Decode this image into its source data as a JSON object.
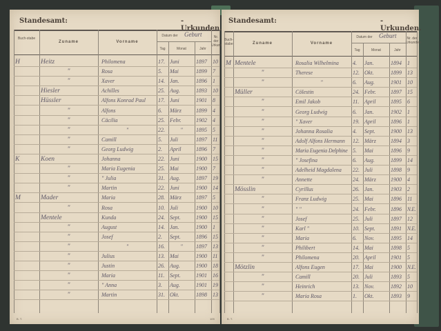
{
  "header": {
    "office_label": "Standesamt:",
    "records_label": "-Urkunden."
  },
  "columns": {
    "letter": "Buch-stabe",
    "surname": "Zuname",
    "given": "Vorname",
    "date_group_printed": "Datum der",
    "date_group_hand": "Geburt",
    "day": "Tag",
    "month": "Monat",
    "year": "Jahr",
    "number": "Nr. der Urkunden"
  },
  "left_page": {
    "rows": [
      {
        "letter": "H",
        "surname": "Heitz",
        "given": "Philomena",
        "day": "17.",
        "month": "Juni",
        "year": "1897",
        "nr": "10"
      },
      {
        "letter": "",
        "surname": "\"",
        "given": "Rosa",
        "day": "5.",
        "month": "Mai",
        "year": "1899",
        "nr": "7"
      },
      {
        "letter": "",
        "surname": "\"",
        "given": "Xaver",
        "day": "14.",
        "month": "Jan.",
        "year": "1896",
        "nr": "1"
      },
      {
        "letter": "",
        "surname": "Hiesler",
        "given": "Achilles",
        "day": "25.",
        "month": "Aug.",
        "year": "1893",
        "nr": "10"
      },
      {
        "letter": "",
        "surname": "Hüssler",
        "given": "Alfons Konrad Paul",
        "day": "17.",
        "month": "Juni",
        "year": "1901",
        "nr": "8"
      },
      {
        "letter": "",
        "surname": "\"",
        "given": "Alfons",
        "day": "6.",
        "month": "März",
        "year": "1899",
        "nr": "4"
      },
      {
        "letter": "",
        "surname": "\"",
        "given": "Cäcilia",
        "day": "25.",
        "month": "Febr.",
        "year": "1902",
        "nr": "4"
      },
      {
        "letter": "",
        "surname": "\"",
        "given": "\"",
        "day": "22.",
        "month": "\"",
        "year": "1895",
        "nr": "5"
      },
      {
        "letter": "",
        "surname": "\"",
        "given": "Camill",
        "day": "5.",
        "month": "Juli",
        "year": "1897",
        "nr": "11"
      },
      {
        "letter": "",
        "surname": "\"",
        "given": "Georg Ludwig",
        "day": "2.",
        "month": "April",
        "year": "1896",
        "nr": "7"
      },
      {
        "letter": "K",
        "surname": "Koen",
        "given": "Johanna",
        "day": "22.",
        "month": "Juni",
        "year": "1900",
        "nr": "15"
      },
      {
        "letter": "",
        "surname": "\"",
        "given": "Maria Eugenia",
        "day": "25.",
        "month": "Mai",
        "year": "1900",
        "nr": "7"
      },
      {
        "letter": "",
        "surname": "\"",
        "given": "\" Julia",
        "day": "31.",
        "month": "Aug.",
        "year": "1897",
        "nr": "19"
      },
      {
        "letter": "",
        "surname": "\"",
        "given": "Martin",
        "day": "22.",
        "month": "Juni",
        "year": "1900",
        "nr": "14"
      },
      {
        "letter": "M",
        "surname": "Mader",
        "given": "Maria",
        "day": "28.",
        "month": "März",
        "year": "1897",
        "nr": "5"
      },
      {
        "letter": "",
        "surname": "\"",
        "given": "Rosa",
        "day": "10.",
        "month": "Juli",
        "year": "1900",
        "nr": "10"
      },
      {
        "letter": "",
        "surname": "Mentele",
        "given": "Kunda",
        "day": "24.",
        "month": "Sept.",
        "year": "1900",
        "nr": "15"
      },
      {
        "letter": "",
        "surname": "\"",
        "given": "August",
        "day": "14.",
        "month": "Jan.",
        "year": "1900",
        "nr": "1"
      },
      {
        "letter": "",
        "surname": "\"",
        "given": "Josef",
        "day": "2.",
        "month": "Sept.",
        "year": "1896",
        "nr": "15"
      },
      {
        "letter": "",
        "surname": "\"",
        "given": "\"",
        "day": "16.",
        "month": "\"",
        "year": "1897",
        "nr": "13"
      },
      {
        "letter": "",
        "surname": "\"",
        "given": "Julius",
        "day": "13.",
        "month": "Mai",
        "year": "1900",
        "nr": "11"
      },
      {
        "letter": "",
        "surname": "\"",
        "given": "Justin",
        "day": "26.",
        "month": "Aug.",
        "year": "1900",
        "nr": "18"
      },
      {
        "letter": "",
        "surname": "\"",
        "given": "Maria",
        "day": "11.",
        "month": "Sept.",
        "year": "1901",
        "nr": "16"
      },
      {
        "letter": "",
        "surname": "\"",
        "given": "\" Anna",
        "day": "3.",
        "month": "Aug.",
        "year": "1901",
        "nr": "19"
      },
      {
        "letter": "",
        "surname": "\"",
        "given": "Martin",
        "day": "31.",
        "month": "Okt.",
        "year": "1898",
        "nr": "13"
      }
    ],
    "footer_left": "B. T.",
    "footer_right": "109"
  },
  "right_page": {
    "rows": [
      {
        "letter": "M",
        "surname": "Mentele",
        "given": "Rosalia Wilhelmina",
        "day": "4.",
        "month": "Jan.",
        "year": "1894",
        "nr": "1"
      },
      {
        "letter": "",
        "surname": "\"",
        "given": "Therese",
        "day": "12.",
        "month": "Okt.",
        "year": "1899",
        "nr": "13"
      },
      {
        "letter": "",
        "surname": "\"",
        "given": "\"",
        "day": "6.",
        "month": "Aug.",
        "year": "1901",
        "nr": "10"
      },
      {
        "letter": "",
        "surname": "Müller",
        "given": "Cölestin",
        "day": "24.",
        "month": "Febr.",
        "year": "1897",
        "nr": "15"
      },
      {
        "letter": "",
        "surname": "\"",
        "given": "Emil Jakob",
        "day": "11.",
        "month": "April",
        "year": "1895",
        "nr": "6"
      },
      {
        "letter": "",
        "surname": "\"",
        "given": "Georg Ludwig",
        "day": "6.",
        "month": "Jan.",
        "year": "1902",
        "nr": "1"
      },
      {
        "letter": "",
        "surname": "\"",
        "given": "\" Xaver",
        "day": "19.",
        "month": "April",
        "year": "1896",
        "nr": "1"
      },
      {
        "letter": "",
        "surname": "\"",
        "given": "Johanna Rosalia",
        "day": "4.",
        "month": "Sept.",
        "year": "1900",
        "nr": "13"
      },
      {
        "letter": "",
        "surname": "\"",
        "given": "Adolf Alfons Hermann",
        "day": "12.",
        "month": "März",
        "year": "1894",
        "nr": "3"
      },
      {
        "letter": "",
        "surname": "\"",
        "given": "Maria Eugenia Delphine",
        "day": "5.",
        "month": "Mai",
        "year": "1896",
        "nr": "9"
      },
      {
        "letter": "",
        "surname": "\"",
        "given": "\" Josefina",
        "day": "6.",
        "month": "Aug.",
        "year": "1899",
        "nr": "14"
      },
      {
        "letter": "",
        "surname": "\"",
        "given": "Adelheid Magdalena",
        "day": "22.",
        "month": "Juli",
        "year": "1898",
        "nr": "9"
      },
      {
        "letter": "",
        "surname": "\"",
        "given": "Annette",
        "day": "24.",
        "month": "März",
        "year": "1900",
        "nr": "4"
      },
      {
        "letter": "",
        "surname": "Mösslin",
        "given": "Cyrillus",
        "day": "26.",
        "month": "Jan.",
        "year": "1903",
        "nr": "2"
      },
      {
        "letter": "",
        "surname": "\"",
        "given": "Franz Ludwig",
        "day": "25.",
        "month": "Mai",
        "year": "1896",
        "nr": "11"
      },
      {
        "letter": "",
        "surname": "\"",
        "given": "\"     \"",
        "day": "24.",
        "month": "Febr.",
        "year": "1896",
        "nr": "N.E."
      },
      {
        "letter": "",
        "surname": "\"",
        "given": "Josef",
        "day": "25.",
        "month": "Juli",
        "year": "1897",
        "nr": "12"
      },
      {
        "letter": "",
        "surname": "\"",
        "given": "Karl \"",
        "day": "10.",
        "month": "Sept.",
        "year": "1891",
        "nr": "N.E."
      },
      {
        "letter": "",
        "surname": "\"",
        "given": "Maria",
        "day": "6.",
        "month": "Nov.",
        "year": "1895",
        "nr": "14"
      },
      {
        "letter": "",
        "surname": "\"",
        "given": "Philibert",
        "day": "14.",
        "month": "Mai",
        "year": "1898",
        "nr": "5"
      },
      {
        "letter": "",
        "surname": "\"",
        "given": "Philomena",
        "day": "20.",
        "month": "April",
        "year": "1901",
        "nr": "5"
      },
      {
        "letter": "",
        "surname": "Mötzlin",
        "given": "Alfons Eugen",
        "day": "17.",
        "month": "Mai",
        "year": "1900",
        "nr": "N.E."
      },
      {
        "letter": "",
        "surname": "\"",
        "given": "Camill",
        "day": "20.",
        "month": "Juli",
        "year": "1893",
        "nr": "5"
      },
      {
        "letter": "",
        "surname": "\"",
        "given": "Heinrich",
        "day": "13.",
        "month": "Nov.",
        "year": "1892",
        "nr": "10"
      },
      {
        "letter": "",
        "surname": "\"",
        "given": "Maria Rosa",
        "day": "1.",
        "month": "Okt.",
        "year": "1893",
        "nr": "9"
      }
    ],
    "footer_left": "B. T."
  }
}
